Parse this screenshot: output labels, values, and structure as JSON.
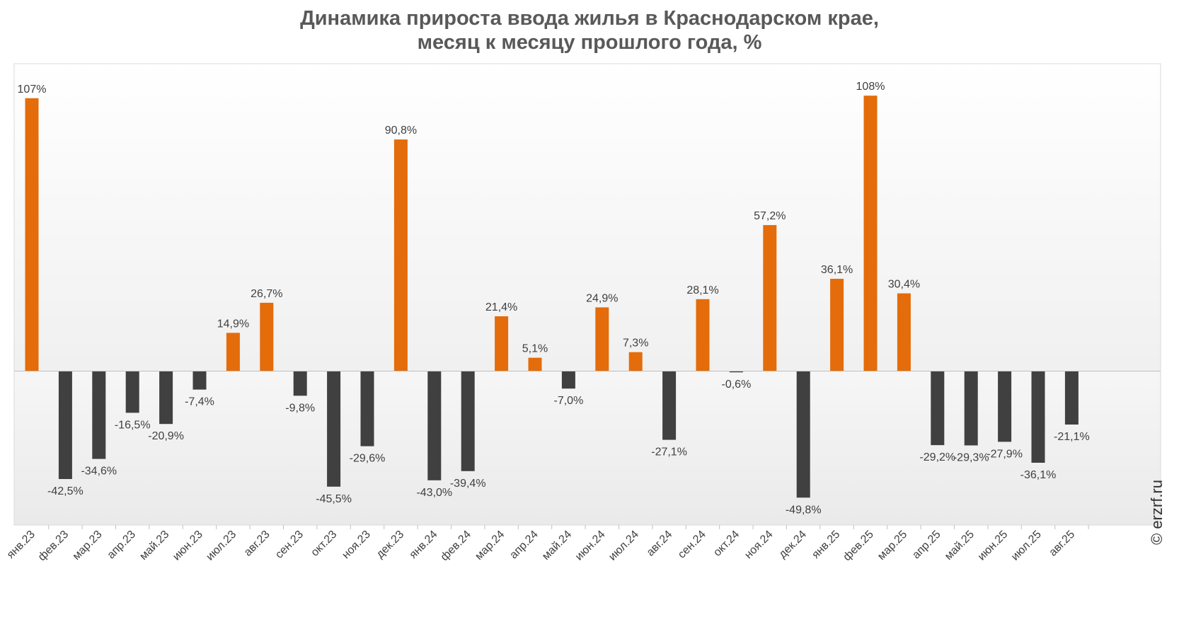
{
  "chart_data": {
    "type": "bar",
    "title_line1": "Динамика прироста ввода жилья в Краснодарском крае,",
    "title_line2": "месяц к месяцу прошлого года, %",
    "categories": [
      "янв.23",
      "фев.23",
      "мар.23",
      "апр.23",
      "май.23",
      "июн.23",
      "июл.23",
      "авг.23",
      "сен.23",
      "окт.23",
      "ноя.23",
      "дек.23",
      "янв.24",
      "фев.24",
      "мар.24",
      "апр.24",
      "май.24",
      "июн.24",
      "июл.24",
      "авг.24",
      "сен.24",
      "окт.24",
      "ноя.24",
      "дек.24",
      "янв.25",
      "фев.25",
      "мар.25",
      "апр.25",
      "май.25",
      "июн.25",
      "июл.25",
      "авг.25"
    ],
    "values": [
      107,
      -42.5,
      -34.6,
      -16.5,
      -20.9,
      -7.4,
      14.9,
      26.7,
      -9.8,
      -45.5,
      -29.6,
      90.8,
      -43.0,
      -39.4,
      21.4,
      5.1,
      -7.0,
      24.9,
      7.3,
      -27.1,
      28.1,
      -0.6,
      57.2,
      -49.8,
      36.1,
      108,
      30.4,
      -29.2,
      -29.3,
      -27.9,
      -36.1,
      -21.1
    ],
    "labels": [
      "107%",
      "-42,5%",
      "-34,6%",
      "-16,5%",
      "-20,9%",
      "-7,4%",
      "14,9%",
      "26,7%",
      "-9,8%",
      "-45,5%",
      "-29,6%",
      "90,8%",
      "-43,0%",
      "-39,4%",
      "21,4%",
      "5,1%",
      "-7,0%",
      "24,9%",
      "7,3%",
      "-27,1%",
      "28,1%",
      "-0,6%",
      "57,2%",
      "-49,8%",
      "36,1%",
      "108%",
      "30,4%",
      "-29,2%",
      "-29,3%",
      "-27,9%",
      "-36,1%",
      "-21,1%"
    ],
    "ylim": [
      -60,
      120
    ],
    "xlabel": "",
    "ylabel": "",
    "positive_color": "#e46c0a",
    "negative_color": "#404040"
  },
  "copyright": "© erzrf.ru"
}
